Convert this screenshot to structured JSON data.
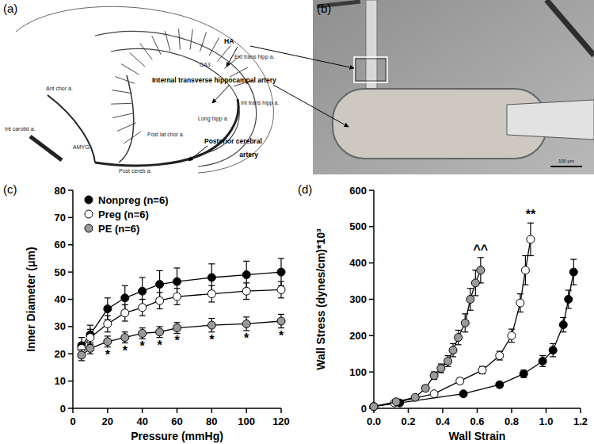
{
  "figure": {
    "panel_labels": [
      "(a)",
      "(b)",
      "(c)",
      "(d)"
    ],
    "callouts": [
      "HA",
      "Internal transverse hippocampal artery",
      "Posterior cerebral artery"
    ],
    "drawing_labels": [
      "Ext trans hipp a.",
      "CA3",
      "Int trans hipp a.",
      "Ant chor a.",
      "Int carotid a.",
      "AMYG.",
      "Long hipp a.",
      "Post lat chor a.",
      "Post cereb a."
    ],
    "scale_bar": "100 μm"
  },
  "chart_data": [
    {
      "type": "line",
      "x_label": "Pressure (mmHg)",
      "y_label": "Inner Diameter (μm)",
      "x": [
        5,
        10,
        20,
        30,
        40,
        50,
        60,
        80,
        100,
        120
      ],
      "xlim": [
        0,
        120
      ],
      "xticks": [
        0,
        20,
        40,
        60,
        80,
        100,
        120
      ],
      "ylim": [
        0,
        80
      ],
      "yticks": [
        0,
        10,
        20,
        30,
        40,
        50,
        60,
        70,
        80
      ],
      "legend": "upper left",
      "marker": "circle",
      "series": [
        {
          "name": "Nonpreg (n=6)",
          "color": "#000000",
          "values": [
            23,
            27,
            36.5,
            40.5,
            43,
            45.5,
            46.5,
            48,
            49,
            50
          ],
          "errors": [
            3,
            3.5,
            4,
            4.5,
            5,
            5,
            5,
            5,
            5,
            5
          ]
        },
        {
          "name": "Preg (n=6)",
          "color": "#ffffff",
          "values": [
            22,
            26,
            31,
            35,
            37,
            39.5,
            41,
            42,
            43,
            43.5
          ],
          "errors": [
            2,
            3,
            3,
            3,
            3,
            3,
            3,
            3,
            3,
            3
          ]
        },
        {
          "name": "PE (n=6)",
          "color": "#9a9a9a",
          "values": [
            19.5,
            22,
            24.5,
            26,
            27.5,
            28,
            29.5,
            30.5,
            31,
            32
          ],
          "errors": [
            2,
            2,
            2,
            2,
            2,
            2,
            2,
            2.5,
            2.5,
            2.5
          ]
        }
      ],
      "annotations": [
        {
          "text": "*",
          "x": 20
        },
        {
          "text": "*",
          "x": 30
        },
        {
          "text": "*",
          "x": 40
        },
        {
          "text": "*",
          "x": 50
        },
        {
          "text": "*",
          "x": 60
        },
        {
          "text": "*",
          "x": 80
        },
        {
          "text": "*",
          "x": 100
        },
        {
          "text": "*",
          "x": 120
        }
      ]
    },
    {
      "type": "line",
      "x_label": "Wall Strain",
      "y_label": "Wall Stress (dynes/cm)*10³",
      "xlim": [
        0,
        1.2
      ],
      "xticks": [
        {
          "value": 0,
          "label": "0.0"
        },
        0.2,
        0.4,
        0.6,
        0.8,
        {
          "value": 1,
          "label": "1.0"
        },
        1.2
      ],
      "ylim": [
        0,
        600
      ],
      "yticks": [
        0,
        100,
        200,
        300,
        400,
        500,
        600
      ],
      "marker": "circle",
      "series": [
        {
          "color": "#000000",
          "x": [
            0,
            0.15,
            0.52,
            0.73,
            0.87,
            0.98,
            1.04,
            1.1,
            1.13,
            1.16
          ],
          "values": [
            5,
            15,
            40,
            65,
            95,
            130,
            160,
            230,
            300,
            375
          ],
          "errors": [
            2,
            3,
            5,
            6,
            10,
            15,
            18,
            20,
            25,
            35
          ]
        },
        {
          "color": "#ffffff",
          "x": [
            0,
            0.12,
            0.35,
            0.5,
            0.63,
            0.73,
            0.8,
            0.85,
            0.88,
            0.91
          ],
          "values": [
            5,
            15,
            40,
            75,
            105,
            145,
            200,
            290,
            380,
            465
          ],
          "errors": [
            2,
            3,
            5,
            8,
            10,
            12,
            18,
            25,
            40,
            45
          ],
          "annotation": "**"
        },
        {
          "color": "#9a9a9a",
          "x": [
            0,
            0.13,
            0.24,
            0.3,
            0.35,
            0.39,
            0.43,
            0.46,
            0.49,
            0.53,
            0.56,
            0.59,
            0.62
          ],
          "values": [
            5,
            18,
            30,
            55,
            90,
            110,
            130,
            160,
            195,
            235,
            300,
            345,
            380
          ],
          "errors": [
            2,
            3,
            5,
            8,
            10,
            12,
            15,
            18,
            20,
            25,
            30,
            35,
            35
          ],
          "annotation": "^^"
        }
      ]
    }
  ]
}
